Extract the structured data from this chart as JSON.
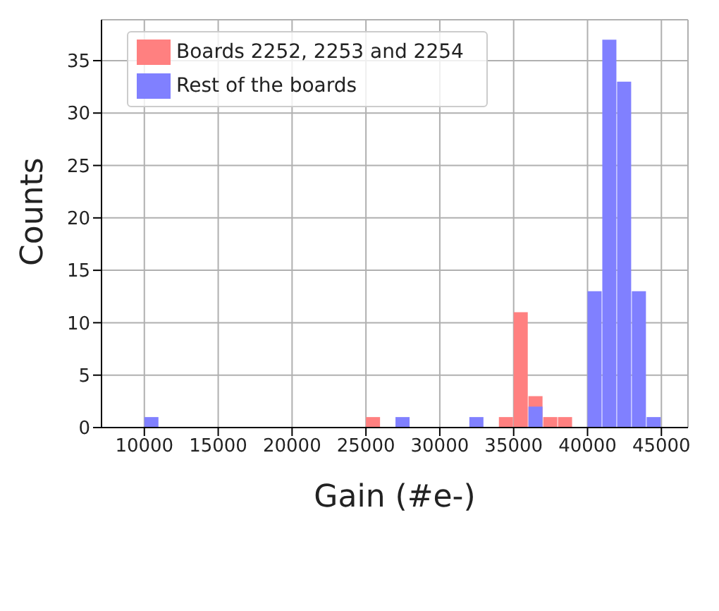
{
  "chart_data": {
    "type": "histogram",
    "xlabel": "Gain (#e-)",
    "ylabel": "Counts",
    "bins": [
      10000,
      11000,
      12000,
      13000,
      14000,
      15000,
      16000,
      17000,
      18000,
      19000,
      20000,
      21000,
      22000,
      23000,
      24000,
      25000,
      26000,
      27000,
      28000,
      29000,
      30000,
      31000,
      32000,
      33000,
      34000,
      35000,
      36000,
      37000,
      38000,
      39000,
      40000,
      41000,
      42000,
      43000,
      44000,
      45000
    ],
    "series": [
      {
        "name": "Boards 2252, 2253 and 2254",
        "color": "#ff8080",
        "values": [
          0,
          0,
          0,
          0,
          0,
          0,
          0,
          0,
          0,
          0,
          0,
          0,
          0,
          0,
          0,
          1,
          0,
          0,
          0,
          0,
          0,
          0,
          0,
          0,
          1,
          11,
          3,
          1,
          1,
          0,
          0,
          0,
          0,
          0,
          0
        ]
      },
      {
        "name": "Rest of the boards",
        "color": "#8080ff",
        "values": [
          1,
          0,
          0,
          0,
          0,
          0,
          0,
          0,
          0,
          0,
          0,
          0,
          0,
          0,
          0,
          0,
          0,
          1,
          0,
          0,
          0,
          0,
          1,
          0,
          0,
          0,
          2,
          0,
          0,
          0,
          13,
          37,
          33,
          13,
          1
        ]
      }
    ],
    "xlim": [
      7100,
      46800
    ],
    "xticks": [
      10000,
      15000,
      20000,
      25000,
      30000,
      35000,
      40000,
      45000
    ],
    "ylim": [
      0,
      38.9
    ],
    "yticks": [
      0,
      5,
      10,
      15,
      20,
      25,
      30,
      35
    ],
    "grid": true,
    "legend": "top left"
  }
}
